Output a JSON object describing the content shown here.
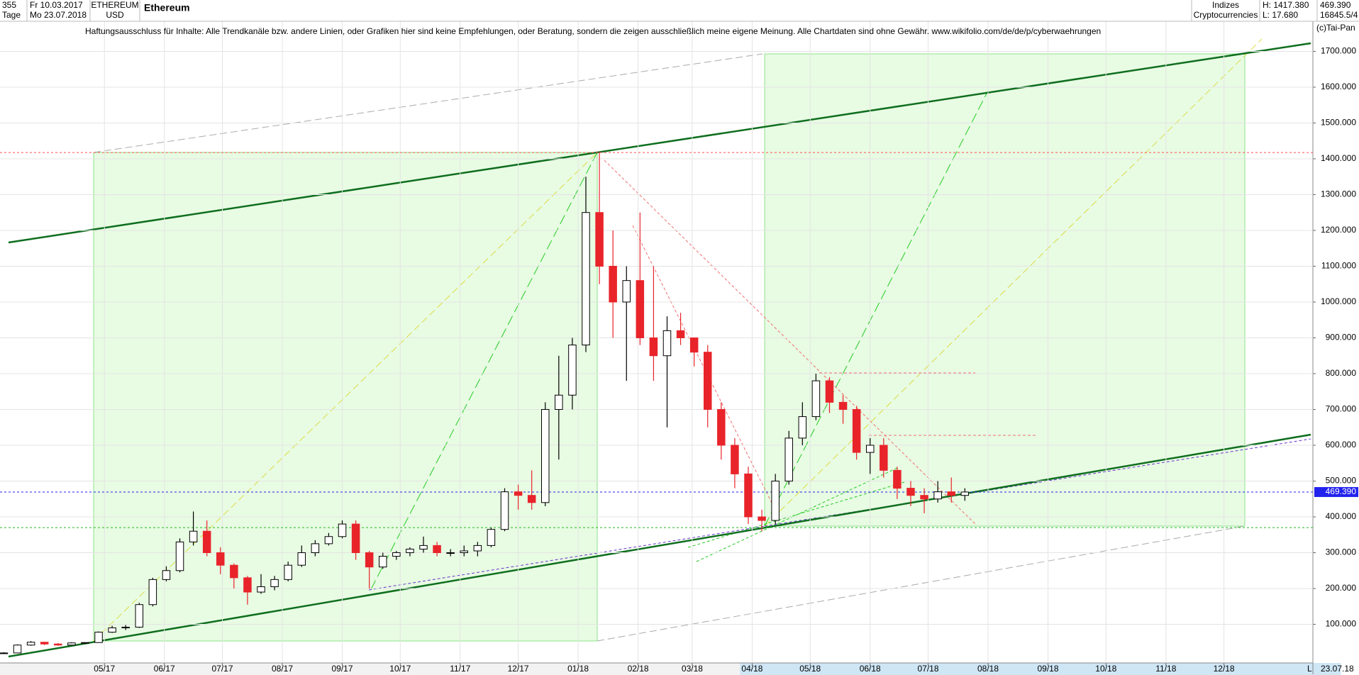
{
  "header": {
    "count": "355",
    "unit": "Tage",
    "from": "Fr 10.03.2017",
    "to": "Mo 23.07.2018",
    "symbol": "ETHEREUM",
    "currency": "USD",
    "group": "Indizes",
    "sector": "Cryptocurrencies",
    "high": "H: 1417.380",
    "low": "L: 17.680",
    "last": "469.390",
    "index": "16845.5/4",
    "disclaimer": "Haftungsausschluss für Inhalte: Alle Trendkanäle bzw. andere Linien, oder Grafiken hier sind keine Empfehlungen, oder Beratung, sondern die zeigen ausschließlich meine eigene Meinung. Alle Chartdaten sind ohne Gewähr.  www.wikifolio.com/de/de/p/cyberwaehrungen",
    "copyright": "(c)Tai-Pan",
    "end_date": "23.07.18",
    "scale_mode": "L"
  },
  "chart_data": {
    "type": "candlestick",
    "title": "Ethereum",
    "ylim": [
      0,
      1790
    ],
    "yticks": [
      {
        "value": 100,
        "label": "100.000"
      },
      {
        "value": 200,
        "label": "200.000"
      },
      {
        "value": 300,
        "label": "300.000"
      },
      {
        "value": 400,
        "label": "400.000"
      },
      {
        "value": 500,
        "label": "500.000"
      },
      {
        "value": 600,
        "label": "600.000"
      },
      {
        "value": 700,
        "label": "700.000"
      },
      {
        "value": 800,
        "label": "800.000"
      },
      {
        "value": 900,
        "label": "900.000"
      },
      {
        "value": 1000,
        "label": "1000.000"
      },
      {
        "value": 1100,
        "label": "1100.000"
      },
      {
        "value": 1200,
        "label": "1200.000"
      },
      {
        "value": 1300,
        "label": "1300.000"
      },
      {
        "value": 1400,
        "label": "1400.000"
      },
      {
        "value": 1500,
        "label": "1500.000"
      },
      {
        "value": 1600,
        "label": "1600.000"
      },
      {
        "value": 1700,
        "label": "1700.000"
      }
    ],
    "xlim": [
      "2017-03-08",
      "2019-01-16"
    ],
    "xticks": [
      {
        "value": "2017-05-01",
        "label": "05/17"
      },
      {
        "value": "2017-06-01",
        "label": "06/17"
      },
      {
        "value": "2017-07-01",
        "label": "07/17"
      },
      {
        "value": "2017-08-01",
        "label": "08/17"
      },
      {
        "value": "2017-09-01",
        "label": "09/17"
      },
      {
        "value": "2017-10-01",
        "label": "10/17"
      },
      {
        "value": "2017-11-01",
        "label": "11/17"
      },
      {
        "value": "2017-12-01",
        "label": "12/17"
      },
      {
        "value": "2018-01-01",
        "label": "01/18"
      },
      {
        "value": "2018-02-01",
        "label": "02/18"
      },
      {
        "value": "2018-03-01",
        "label": "03/18"
      },
      {
        "value": "2018-04-01",
        "label": "04/18"
      },
      {
        "value": "2018-05-01",
        "label": "05/18"
      },
      {
        "value": "2018-06-01",
        "label": "06/18"
      },
      {
        "value": "2018-07-01",
        "label": "07/18"
      },
      {
        "value": "2018-08-01",
        "label": "08/18"
      },
      {
        "value": "2018-09-01",
        "label": "09/18"
      },
      {
        "value": "2018-10-01",
        "label": "10/18"
      },
      {
        "value": "2018-11-01",
        "label": "11/18"
      },
      {
        "value": "2018-12-01",
        "label": "12/18"
      }
    ],
    "grid": true,
    "up_color": "#000000",
    "down_color": "#e8242a",
    "x": [
      "2017-03-10",
      "2017-03-17",
      "2017-03-24",
      "2017-03-31",
      "2017-04-07",
      "2017-04-14",
      "2017-04-21",
      "2017-04-28",
      "2017-05-05",
      "2017-05-12",
      "2017-05-19",
      "2017-05-26",
      "2017-06-02",
      "2017-06-09",
      "2017-06-16",
      "2017-06-23",
      "2017-06-30",
      "2017-07-07",
      "2017-07-14",
      "2017-07-21",
      "2017-07-28",
      "2017-08-04",
      "2017-08-11",
      "2017-08-18",
      "2017-08-25",
      "2017-09-01",
      "2017-09-08",
      "2017-09-15",
      "2017-09-22",
      "2017-09-29",
      "2017-10-06",
      "2017-10-13",
      "2017-10-20",
      "2017-10-27",
      "2017-11-03",
      "2017-11-10",
      "2017-11-17",
      "2017-11-24",
      "2017-12-01",
      "2017-12-08",
      "2017-12-15",
      "2017-12-22",
      "2017-12-29",
      "2018-01-05",
      "2018-01-12",
      "2018-01-19",
      "2018-01-26",
      "2018-02-02",
      "2018-02-09",
      "2018-02-16",
      "2018-02-23",
      "2018-03-02",
      "2018-03-09",
      "2018-03-16",
      "2018-03-23",
      "2018-03-30",
      "2018-04-06",
      "2018-04-13",
      "2018-04-20",
      "2018-04-27",
      "2018-05-04",
      "2018-05-11",
      "2018-05-18",
      "2018-05-25",
      "2018-06-01",
      "2018-06-08",
      "2018-06-15",
      "2018-06-22",
      "2018-06-29",
      "2018-07-06",
      "2018-07-13",
      "2018-07-20"
    ],
    "open": [
      19,
      20,
      42,
      50,
      45,
      42,
      48,
      49,
      78,
      90,
      92,
      155,
      225,
      250,
      330,
      360,
      300,
      265,
      230,
      190,
      205,
      225,
      265,
      300,
      325,
      345,
      380,
      300,
      260,
      290,
      300,
      310,
      320,
      300,
      300,
      305,
      320,
      365,
      470,
      460,
      440,
      700,
      740,
      880,
      1250,
      1100,
      1000,
      1060,
      900,
      850,
      920,
      900,
      860,
      700,
      600,
      520,
      400,
      390,
      500,
      620,
      680,
      780,
      720,
      700,
      580,
      600,
      530,
      480,
      460,
      450,
      470,
      460
    ],
    "high": [
      22,
      44,
      53,
      51,
      48,
      50,
      50,
      80,
      96,
      98,
      160,
      230,
      262,
      340,
      415,
      390,
      315,
      270,
      235,
      240,
      235,
      275,
      320,
      335,
      355,
      390,
      390,
      305,
      300,
      305,
      315,
      345,
      330,
      310,
      320,
      330,
      370,
      480,
      490,
      530,
      720,
      850,
      900,
      1350,
      1420,
      1200,
      1100,
      1250,
      1100,
      960,
      970,
      900,
      880,
      720,
      620,
      540,
      420,
      520,
      640,
      720,
      800,
      790,
      740,
      710,
      620,
      620,
      540,
      500,
      480,
      500,
      510,
      480
    ],
    "low": [
      18,
      20,
      40,
      42,
      40,
      41,
      46,
      48,
      76,
      84,
      90,
      150,
      220,
      245,
      320,
      290,
      240,
      200,
      155,
      185,
      195,
      220,
      260,
      290,
      320,
      340,
      280,
      200,
      255,
      280,
      290,
      300,
      290,
      290,
      290,
      290,
      315,
      360,
      420,
      420,
      430,
      560,
      700,
      860,
      1050,
      900,
      780,
      880,
      780,
      650,
      880,
      820,
      650,
      560,
      480,
      380,
      360,
      380,
      490,
      600,
      670,
      690,
      660,
      560,
      520,
      510,
      450,
      430,
      410,
      440,
      440,
      445
    ],
    "close": [
      20,
      42,
      50,
      45,
      42,
      48,
      49,
      78,
      90,
      92,
      155,
      225,
      250,
      330,
      360,
      300,
      265,
      230,
      190,
      205,
      225,
      265,
      300,
      325,
      345,
      380,
      300,
      260,
      290,
      300,
      310,
      320,
      300,
      300,
      305,
      320,
      365,
      470,
      460,
      440,
      700,
      740,
      880,
      1250,
      1100,
      1000,
      1060,
      900,
      850,
      920,
      900,
      860,
      700,
      600,
      520,
      400,
      390,
      500,
      620,
      680,
      780,
      720,
      700,
      580,
      600,
      530,
      480,
      460,
      450,
      470,
      460,
      469.39
    ],
    "hlines": [
      {
        "value": 1417.38,
        "color": "#ff5050"
      },
      {
        "value": 370,
        "color": "#22bb22"
      },
      {
        "value": 469.39,
        "label": "469.390",
        "color": "#2222ee"
      }
    ]
  }
}
